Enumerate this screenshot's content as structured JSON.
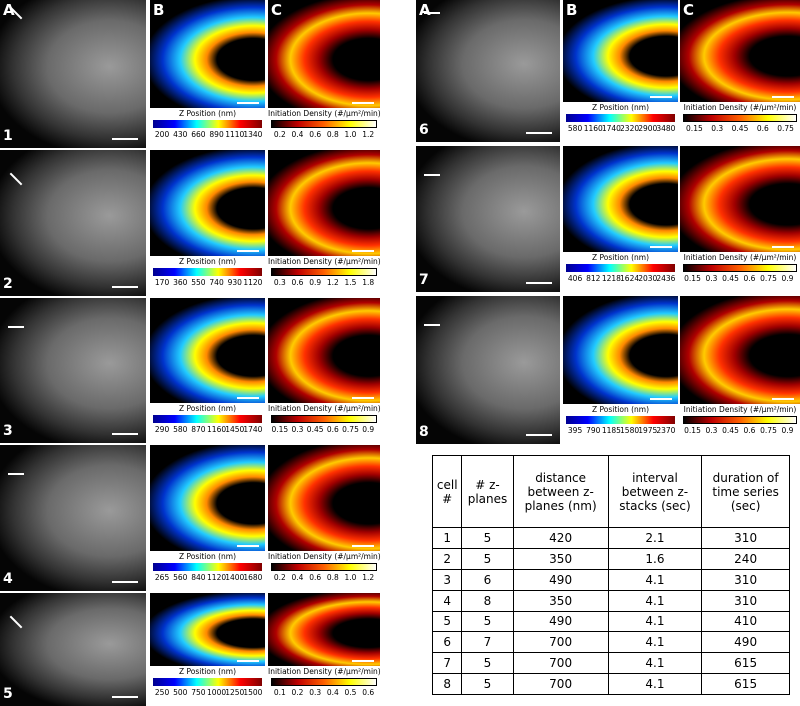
{
  "panel_labels": [
    "A",
    "B",
    "C"
  ],
  "cells": [
    {
      "number": "1",
      "z_label": "Z Position (nm)",
      "z_ticks": [
        "200",
        "430",
        "660",
        "890",
        "1110",
        "1340"
      ],
      "density_label": "Initiation Density (#/μm²/min)",
      "density_ticks": [
        "0.2",
        "0.4",
        "0.6",
        "0.8",
        "1.0",
        "1.2"
      ]
    },
    {
      "number": "2",
      "z_label": "Z Position (nm)",
      "z_ticks": [
        "170",
        "360",
        "550",
        "740",
        "930",
        "1120"
      ],
      "density_label": "Initiation Density (#/μm²/min)",
      "density_ticks": [
        "0.3",
        "0.6",
        "0.9",
        "1.2",
        "1.5",
        "1.8"
      ]
    },
    {
      "number": "3",
      "z_label": "Z Position (nm)",
      "z_ticks": [
        "290",
        "580",
        "870",
        "1160",
        "1450",
        "1740"
      ],
      "density_label": "Initiation Density (#/μm²/min)",
      "density_ticks": [
        "0.15",
        "0.3",
        "0.45",
        "0.6",
        "0.75",
        "0.9"
      ]
    },
    {
      "number": "4",
      "z_label": "Z Position (nm)",
      "z_ticks": [
        "265",
        "560",
        "840",
        "1120",
        "1400",
        "1680"
      ],
      "density_label": "Initiation Density (#/μm²/min)",
      "density_ticks": [
        "0.2",
        "0.4",
        "0.6",
        "0.8",
        "1.0",
        "1.2"
      ]
    },
    {
      "number": "5",
      "z_label": "Z Position (nm)",
      "z_ticks": [
        "250",
        "500",
        "750",
        "1000",
        "1250",
        "1500"
      ],
      "density_label": "Initiation Density (#/μm²/min)",
      "density_ticks": [
        "0.1",
        "0.2",
        "0.3",
        "0.4",
        "0.5",
        "0.6"
      ]
    },
    {
      "number": "6",
      "z_label": "Z Position (nm)",
      "z_ticks": [
        "580",
        "1160",
        "1740",
        "2320",
        "2900",
        "3480"
      ],
      "density_label": "Initiation Density (#/μm²/min)",
      "density_ticks": [
        "0.15",
        "0.3",
        "0.45",
        "0.6",
        "0.75"
      ]
    },
    {
      "number": "7",
      "z_label": "Z Position (nm)",
      "z_ticks": [
        "406",
        "812",
        "1218",
        "1624",
        "2030",
        "2436"
      ],
      "density_label": "Initiation Density (#/μm²/min)",
      "density_ticks": [
        "0.15",
        "0.3",
        "0.45",
        "0.6",
        "0.75",
        "0.9"
      ]
    },
    {
      "number": "8",
      "z_label": "Z Position (nm)",
      "z_ticks": [
        "395",
        "790",
        "1185",
        "1580",
        "1975",
        "2370"
      ],
      "density_label": "Initiation Density (#/μm²/min)",
      "density_ticks": [
        "0.15",
        "0.3",
        "0.45",
        "0.6",
        "0.75",
        "0.9"
      ]
    }
  ],
  "table": {
    "header": [
      "cell #",
      "# z-planes",
      "distance between z-planes (nm)",
      "interval between z-stacks (sec)",
      "duration of time series (sec)"
    ],
    "rows": [
      [
        "1",
        "5",
        "420",
        "2.1",
        "310"
      ],
      [
        "2",
        "5",
        "350",
        "1.6",
        "240"
      ],
      [
        "3",
        "6",
        "490",
        "4.1",
        "310"
      ],
      [
        "4",
        "8",
        "350",
        "4.1",
        "310"
      ],
      [
        "5",
        "5",
        "490",
        "4.1",
        "410"
      ],
      [
        "6",
        "7",
        "700",
        "4.1",
        "490"
      ],
      [
        "7",
        "5",
        "700",
        "4.1",
        "615"
      ],
      [
        "8",
        "5",
        "700",
        "4.1",
        "615"
      ]
    ]
  }
}
